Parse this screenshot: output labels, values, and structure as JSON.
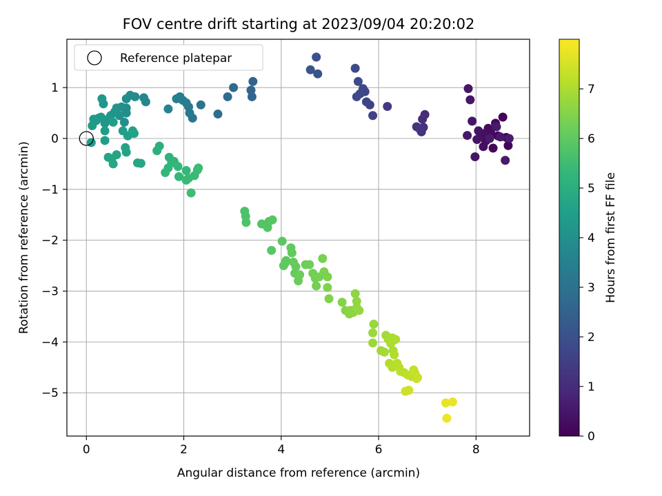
{
  "chart_data": {
    "type": "scatter",
    "title": "FOV centre drift starting at 2023/09/04 20:20:02",
    "xlabel": "Angular distance from reference (arcmin)",
    "ylabel": "Rotation from reference (arcmin)",
    "xlim": [
      -0.4,
      9.1
    ],
    "ylim": [
      -5.85,
      1.95
    ],
    "xticks": [
      0,
      2,
      4,
      6,
      8
    ],
    "yticks": [
      -5,
      -4,
      -3,
      -2,
      -1,
      0,
      1
    ],
    "grid": true,
    "legend": {
      "position": "top-left",
      "entries": [
        "Reference platepar"
      ]
    },
    "reference_point": {
      "x": 0,
      "y": 0,
      "label": "Reference platepar"
    },
    "colorbar": {
      "label": "Hours from first FF file",
      "colormap": "viridis",
      "range": [
        0,
        8
      ],
      "ticks": [
        0,
        1,
        2,
        3,
        4,
        5,
        6,
        7
      ]
    },
    "points": [
      {
        "x": 8.62,
        "y": 0.02,
        "h": 0.05
      },
      {
        "x": 8.55,
        "y": 0.42,
        "h": 0.07
      },
      {
        "x": 8.66,
        "y": -0.14,
        "h": 0.09
      },
      {
        "x": 8.45,
        "y": 0.05,
        "h": 0.12
      },
      {
        "x": 8.4,
        "y": 0.3,
        "h": 0.15
      },
      {
        "x": 8.35,
        "y": -0.19,
        "h": 0.18
      },
      {
        "x": 8.3,
        "y": 0.12,
        "h": 0.2
      },
      {
        "x": 8.25,
        "y": 0.2,
        "h": 0.23
      },
      {
        "x": 8.2,
        "y": -0.05,
        "h": 0.26
      },
      {
        "x": 8.18,
        "y": 0.1,
        "h": 0.3
      },
      {
        "x": 8.15,
        "y": -0.16,
        "h": 0.32
      },
      {
        "x": 8.1,
        "y": 0.05,
        "h": 0.35
      },
      {
        "x": 8.05,
        "y": 0.15,
        "h": 0.38
      },
      {
        "x": 8.02,
        "y": -0.02,
        "h": 0.4
      },
      {
        "x": 7.98,
        "y": -0.36,
        "h": 0.43
      },
      {
        "x": 7.92,
        "y": 0.34,
        "h": 0.46
      },
      {
        "x": 7.88,
        "y": 0.76,
        "h": 0.48
      },
      {
        "x": 7.84,
        "y": 0.98,
        "h": 0.5
      },
      {
        "x": 7.82,
        "y": 0.06,
        "h": 0.53
      },
      {
        "x": 8.6,
        "y": -0.43,
        "h": 0.56
      },
      {
        "x": 8.5,
        "y": 0.03,
        "h": 0.58
      },
      {
        "x": 8.42,
        "y": 0.23,
        "h": 0.6
      },
      {
        "x": 8.28,
        "y": 0.0,
        "h": 0.62
      },
      {
        "x": 8.68,
        "y": 0.0,
        "h": 0.64
      },
      {
        "x": 6.95,
        "y": 0.47,
        "h": 1.0
      },
      {
        "x": 6.9,
        "y": 0.38,
        "h": 1.05
      },
      {
        "x": 6.92,
        "y": 0.22,
        "h": 1.1
      },
      {
        "x": 6.88,
        "y": 0.13,
        "h": 1.15
      },
      {
        "x": 6.78,
        "y": 0.23,
        "h": 1.2
      },
      {
        "x": 6.85,
        "y": 0.18,
        "h": 1.25
      },
      {
        "x": 6.18,
        "y": 0.63,
        "h": 1.4
      },
      {
        "x": 5.88,
        "y": 0.45,
        "h": 1.55
      },
      {
        "x": 5.82,
        "y": 0.66,
        "h": 1.6
      },
      {
        "x": 5.75,
        "y": 0.72,
        "h": 1.65
      },
      {
        "x": 5.72,
        "y": 0.92,
        "h": 1.7
      },
      {
        "x": 5.68,
        "y": 0.98,
        "h": 1.72
      },
      {
        "x": 5.62,
        "y": 0.88,
        "h": 1.75
      },
      {
        "x": 5.55,
        "y": 0.82,
        "h": 1.78
      },
      {
        "x": 5.58,
        "y": 1.12,
        "h": 1.8
      },
      {
        "x": 5.52,
        "y": 1.38,
        "h": 1.85
      },
      {
        "x": 4.72,
        "y": 1.6,
        "h": 2.05
      },
      {
        "x": 4.75,
        "y": 1.27,
        "h": 2.1
      },
      {
        "x": 4.6,
        "y": 1.35,
        "h": 2.15
      },
      {
        "x": 3.42,
        "y": 1.12,
        "h": 2.55
      },
      {
        "x": 3.38,
        "y": 0.95,
        "h": 2.6
      },
      {
        "x": 3.4,
        "y": 0.82,
        "h": 2.62
      },
      {
        "x": 3.02,
        "y": 1.0,
        "h": 2.75
      },
      {
        "x": 2.9,
        "y": 0.82,
        "h": 2.8
      },
      {
        "x": 2.7,
        "y": 0.48,
        "h": 2.9
      },
      {
        "x": 2.35,
        "y": 0.66,
        "h": 3.05
      },
      {
        "x": 2.18,
        "y": 0.4,
        "h": 3.15
      },
      {
        "x": 2.12,
        "y": 0.5,
        "h": 3.2
      },
      {
        "x": 2.1,
        "y": 0.62,
        "h": 3.25
      },
      {
        "x": 2.05,
        "y": 0.7,
        "h": 3.3
      },
      {
        "x": 1.98,
        "y": 0.75,
        "h": 3.35
      },
      {
        "x": 1.92,
        "y": 0.82,
        "h": 3.4
      },
      {
        "x": 1.85,
        "y": 0.78,
        "h": 3.45
      },
      {
        "x": 1.68,
        "y": 0.58,
        "h": 3.55
      },
      {
        "x": 1.22,
        "y": 0.72,
        "h": 3.7
      },
      {
        "x": 1.18,
        "y": 0.8,
        "h": 3.72
      },
      {
        "x": 1.0,
        "y": 0.82,
        "h": 3.8
      },
      {
        "x": 0.9,
        "y": 0.85,
        "h": 3.85
      },
      {
        "x": 0.82,
        "y": 0.78,
        "h": 3.88
      },
      {
        "x": 0.82,
        "y": 0.6,
        "h": 3.92
      },
      {
        "x": 0.82,
        "y": 0.5,
        "h": 3.95
      },
      {
        "x": 0.78,
        "y": 0.32,
        "h": 3.98
      },
      {
        "x": 0.72,
        "y": 0.62,
        "h": 4.0
      },
      {
        "x": 0.68,
        "y": 0.45,
        "h": 4.05
      },
      {
        "x": 0.62,
        "y": 0.6,
        "h": 4.1
      },
      {
        "x": 0.58,
        "y": 0.52,
        "h": 4.12
      },
      {
        "x": 0.5,
        "y": 0.45,
        "h": 4.15
      },
      {
        "x": 0.45,
        "y": 0.38,
        "h": 4.18
      },
      {
        "x": 0.38,
        "y": 0.3,
        "h": 4.2
      },
      {
        "x": 0.35,
        "y": 0.68,
        "h": 4.22
      },
      {
        "x": 0.32,
        "y": 0.78,
        "h": 4.25
      },
      {
        "x": 0.3,
        "y": 0.42,
        "h": 4.28
      },
      {
        "x": 0.25,
        "y": 0.4,
        "h": 4.3
      },
      {
        "x": 0.2,
        "y": 0.35,
        "h": 4.32
      },
      {
        "x": 0.15,
        "y": 0.38,
        "h": 4.35
      },
      {
        "x": 0.12,
        "y": 0.25,
        "h": 4.38
      },
      {
        "x": 0.1,
        "y": -0.08,
        "h": 4.4
      },
      {
        "x": 0.38,
        "y": 0.15,
        "h": 4.42
      },
      {
        "x": 0.38,
        "y": -0.04,
        "h": 4.45
      },
      {
        "x": 0.55,
        "y": 0.32,
        "h": 4.48
      },
      {
        "x": 0.75,
        "y": 0.15,
        "h": 4.5
      },
      {
        "x": 0.85,
        "y": 0.05,
        "h": 4.52
      },
      {
        "x": 0.95,
        "y": 0.15,
        "h": 4.55
      },
      {
        "x": 0.98,
        "y": 0.1,
        "h": 4.58
      },
      {
        "x": 0.8,
        "y": -0.18,
        "h": 4.6
      },
      {
        "x": 0.82,
        "y": -0.27,
        "h": 4.62
      },
      {
        "x": 0.62,
        "y": -0.32,
        "h": 4.65
      },
      {
        "x": 0.45,
        "y": -0.37,
        "h": 4.68
      },
      {
        "x": 0.52,
        "y": -0.4,
        "h": 4.7
      },
      {
        "x": 0.55,
        "y": -0.5,
        "h": 4.72
      },
      {
        "x": 1.05,
        "y": -0.48,
        "h": 4.75
      },
      {
        "x": 1.12,
        "y": -0.49,
        "h": 4.78
      },
      {
        "x": 1.5,
        "y": -0.15,
        "h": 5.0
      },
      {
        "x": 1.45,
        "y": -0.24,
        "h": 5.05
      },
      {
        "x": 1.7,
        "y": -0.37,
        "h": 5.15
      },
      {
        "x": 1.8,
        "y": -0.45,
        "h": 5.2
      },
      {
        "x": 1.75,
        "y": -0.48,
        "h": 5.22
      },
      {
        "x": 1.68,
        "y": -0.58,
        "h": 5.25
      },
      {
        "x": 1.62,
        "y": -0.67,
        "h": 5.28
      },
      {
        "x": 1.88,
        "y": -0.55,
        "h": 5.3
      },
      {
        "x": 1.9,
        "y": -0.75,
        "h": 5.32
      },
      {
        "x": 2.05,
        "y": -0.63,
        "h": 5.35
      },
      {
        "x": 2.05,
        "y": -0.82,
        "h": 5.38
      },
      {
        "x": 2.1,
        "y": -0.78,
        "h": 5.4
      },
      {
        "x": 2.22,
        "y": -0.73,
        "h": 5.42
      },
      {
        "x": 2.28,
        "y": -0.62,
        "h": 5.45
      },
      {
        "x": 2.3,
        "y": -0.58,
        "h": 5.48
      },
      {
        "x": 2.15,
        "y": -1.07,
        "h": 5.5
      },
      {
        "x": 3.25,
        "y": -1.43,
        "h": 5.7
      },
      {
        "x": 3.27,
        "y": -1.53,
        "h": 5.72
      },
      {
        "x": 3.28,
        "y": -1.65,
        "h": 5.75
      },
      {
        "x": 3.6,
        "y": -1.68,
        "h": 5.8
      },
      {
        "x": 3.75,
        "y": -1.63,
        "h": 5.82
      },
      {
        "x": 3.72,
        "y": -1.75,
        "h": 5.85
      },
      {
        "x": 3.82,
        "y": -1.6,
        "h": 5.88
      },
      {
        "x": 3.8,
        "y": -2.2,
        "h": 5.9
      },
      {
        "x": 4.02,
        "y": -2.02,
        "h": 5.92
      },
      {
        "x": 4.1,
        "y": -2.4,
        "h": 5.95
      },
      {
        "x": 4.05,
        "y": -2.5,
        "h": 5.98
      },
      {
        "x": 4.08,
        "y": -2.45,
        "h": 6.0
      },
      {
        "x": 4.2,
        "y": -2.15,
        "h": 6.02
      },
      {
        "x": 4.22,
        "y": -2.25,
        "h": 6.05
      },
      {
        "x": 4.25,
        "y": -2.43,
        "h": 6.08
      },
      {
        "x": 4.3,
        "y": -2.52,
        "h": 6.1
      },
      {
        "x": 4.28,
        "y": -2.65,
        "h": 6.12
      },
      {
        "x": 4.35,
        "y": -2.8,
        "h": 6.15
      },
      {
        "x": 4.38,
        "y": -2.68,
        "h": 6.18
      },
      {
        "x": 4.5,
        "y": -2.48,
        "h": 6.2
      },
      {
        "x": 4.58,
        "y": -2.48,
        "h": 6.22
      },
      {
        "x": 4.65,
        "y": -2.65,
        "h": 6.25
      },
      {
        "x": 4.7,
        "y": -2.75,
        "h": 6.28
      },
      {
        "x": 4.72,
        "y": -2.9,
        "h": 6.3
      },
      {
        "x": 4.78,
        "y": -2.72,
        "h": 6.32
      },
      {
        "x": 4.85,
        "y": -2.36,
        "h": 6.35
      },
      {
        "x": 4.88,
        "y": -2.62,
        "h": 6.38
      },
      {
        "x": 4.95,
        "y": -2.72,
        "h": 6.4
      },
      {
        "x": 4.95,
        "y": -2.93,
        "h": 6.42
      },
      {
        "x": 4.98,
        "y": -3.15,
        "h": 6.45
      },
      {
        "x": 5.25,
        "y": -3.22,
        "h": 6.5
      },
      {
        "x": 5.32,
        "y": -3.38,
        "h": 6.52
      },
      {
        "x": 5.4,
        "y": -3.45,
        "h": 6.55
      },
      {
        "x": 5.42,
        "y": -3.38,
        "h": 6.58
      },
      {
        "x": 5.48,
        "y": -3.42,
        "h": 6.6
      },
      {
        "x": 5.52,
        "y": -3.05,
        "h": 6.62
      },
      {
        "x": 5.55,
        "y": -3.2,
        "h": 6.65
      },
      {
        "x": 5.55,
        "y": -3.32,
        "h": 6.68
      },
      {
        "x": 5.6,
        "y": -3.38,
        "h": 6.7
      },
      {
        "x": 5.9,
        "y": -3.65,
        "h": 6.75
      },
      {
        "x": 5.88,
        "y": -3.82,
        "h": 6.78
      },
      {
        "x": 5.88,
        "y": -4.02,
        "h": 6.8
      },
      {
        "x": 6.05,
        "y": -4.17,
        "h": 6.85
      },
      {
        "x": 6.12,
        "y": -4.2,
        "h": 6.88
      },
      {
        "x": 6.15,
        "y": -3.87,
        "h": 6.9
      },
      {
        "x": 6.2,
        "y": -3.95,
        "h": 6.92
      },
      {
        "x": 6.28,
        "y": -3.92,
        "h": 6.95
      },
      {
        "x": 6.25,
        "y": -4.03,
        "h": 6.98
      },
      {
        "x": 6.3,
        "y": -4.17,
        "h": 7.0
      },
      {
        "x": 6.35,
        "y": -3.95,
        "h": 7.02
      },
      {
        "x": 6.32,
        "y": -4.25,
        "h": 7.05
      },
      {
        "x": 6.22,
        "y": -4.42,
        "h": 7.08
      },
      {
        "x": 6.28,
        "y": -4.5,
        "h": 7.1
      },
      {
        "x": 6.38,
        "y": -4.42,
        "h": 7.12
      },
      {
        "x": 6.42,
        "y": -4.5,
        "h": 7.15
      },
      {
        "x": 6.45,
        "y": -4.58,
        "h": 7.18
      },
      {
        "x": 6.52,
        "y": -4.6,
        "h": 7.2
      },
      {
        "x": 6.6,
        "y": -4.65,
        "h": 7.22
      },
      {
        "x": 6.68,
        "y": -4.68,
        "h": 7.25
      },
      {
        "x": 6.72,
        "y": -4.55,
        "h": 7.28
      },
      {
        "x": 6.75,
        "y": -4.62,
        "h": 7.3
      },
      {
        "x": 6.78,
        "y": -4.72,
        "h": 7.32
      },
      {
        "x": 6.8,
        "y": -4.7,
        "h": 7.35
      },
      {
        "x": 6.55,
        "y": -4.97,
        "h": 7.4
      },
      {
        "x": 6.62,
        "y": -4.95,
        "h": 7.42
      },
      {
        "x": 7.38,
        "y": -5.2,
        "h": 7.7
      },
      {
        "x": 7.52,
        "y": -5.18,
        "h": 7.75
      },
      {
        "x": 7.4,
        "y": -5.5,
        "h": 7.8
      }
    ]
  }
}
